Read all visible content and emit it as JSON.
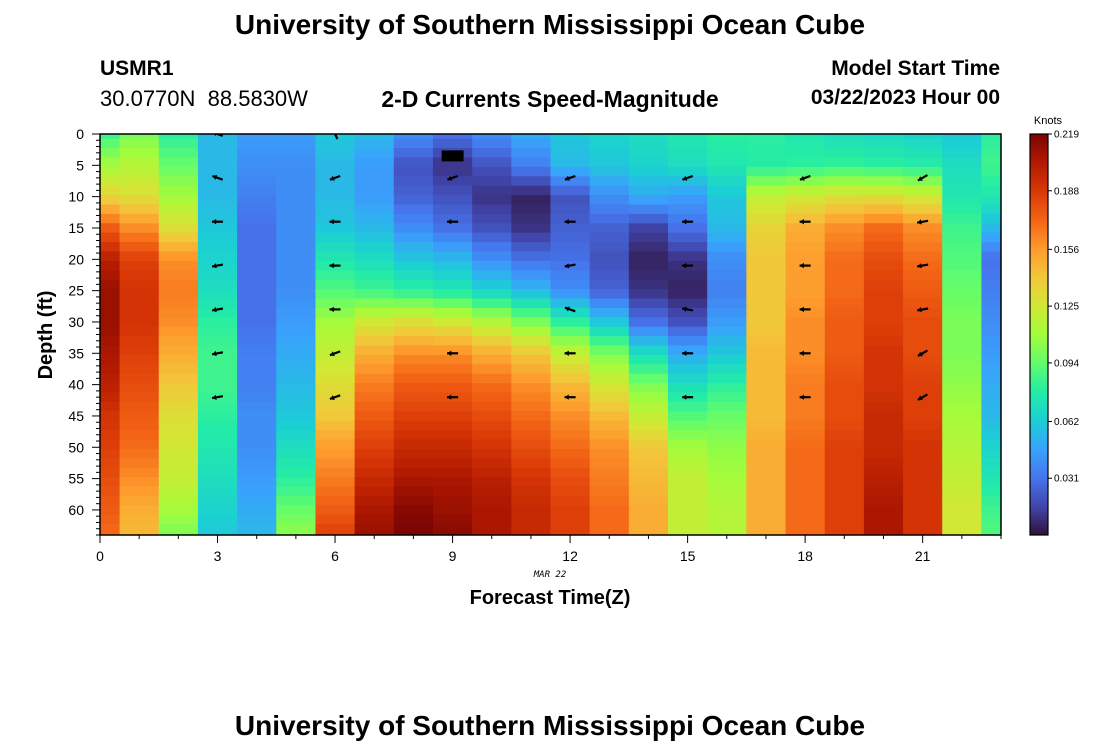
{
  "page": {
    "title": "University of Southern Mississippi Ocean Cube",
    "footer_title": "University of Southern Mississippi Ocean Cube",
    "station_id": "USMR1",
    "station_coords": "30.0770N  88.5830W",
    "start_time_label": "Model Start Time",
    "start_time_value": "03/22/2023 Hour 00"
  },
  "chart_data": {
    "type": "heatmap",
    "title": "2-D Currents Speed-Magnitude",
    "xlabel": "Forecast Time(Z)",
    "ylabel": "Depth (ft)",
    "date_label": "MAR 22",
    "colorbar_title": "Knots",
    "xlim": [
      0,
      23
    ],
    "ylim": [
      0,
      64
    ],
    "x_ticks": [
      0,
      3,
      6,
      9,
      12,
      15,
      18,
      21
    ],
    "y_ticks": [
      0,
      5,
      10,
      15,
      20,
      25,
      30,
      35,
      40,
      45,
      50,
      55,
      60
    ],
    "colorbar_ticks": [
      "0.219",
      "0.188",
      "0.156",
      "0.125",
      "0.094",
      "0.062",
      "0.031"
    ],
    "colorbar_range": [
      0,
      0.219
    ],
    "colors": [
      "#30123b",
      "#4145ab",
      "#4675ed",
      "#39a2fc",
      "#1bcfd4",
      "#24eca6",
      "#61fc6c",
      "#a4fc3b",
      "#d1e834",
      "#f3c63a",
      "#fe9b2d",
      "#f36315",
      "#d93806",
      "#b11901",
      "#7a0402"
    ],
    "hours": [
      0,
      1,
      2,
      3,
      4,
      5,
      6,
      7,
      8,
      9,
      10,
      11,
      12,
      13,
      14,
      15,
      16,
      17,
      18,
      19,
      20,
      21,
      22,
      23
    ],
    "depths": [
      0,
      5,
      10,
      15,
      20,
      25,
      30,
      35,
      40,
      45,
      50,
      55,
      60,
      64
    ],
    "speed_knots": [
      [
        0.085,
        0.1,
        0.08,
        0.055,
        0.045,
        0.045,
        0.06,
        0.055,
        0.04,
        0.03,
        0.04,
        0.05,
        0.06,
        0.065,
        0.07,
        0.075,
        0.08,
        0.08,
        0.075,
        0.07,
        0.068,
        0.065,
        0.06,
        0.08
      ],
      [
        0.11,
        0.115,
        0.095,
        0.055,
        0.04,
        0.04,
        0.055,
        0.045,
        0.02,
        0.01,
        0.02,
        0.035,
        0.055,
        0.06,
        0.065,
        0.07,
        0.075,
        0.078,
        0.08,
        0.082,
        0.08,
        0.078,
        0.07,
        0.085
      ],
      [
        0.135,
        0.13,
        0.11,
        0.055,
        0.035,
        0.04,
        0.055,
        0.045,
        0.025,
        0.02,
        0.01,
        0.005,
        0.02,
        0.04,
        0.05,
        0.045,
        0.06,
        0.12,
        0.125,
        0.13,
        0.13,
        0.125,
        0.075,
        0.075
      ],
      [
        0.175,
        0.16,
        0.13,
        0.06,
        0.03,
        0.04,
        0.06,
        0.055,
        0.04,
        0.03,
        0.02,
        0.01,
        0.025,
        0.025,
        0.015,
        0.03,
        0.055,
        0.135,
        0.15,
        0.16,
        0.17,
        0.16,
        0.085,
        0.055
      ],
      [
        0.2,
        0.185,
        0.16,
        0.065,
        0.03,
        0.04,
        0.075,
        0.07,
        0.06,
        0.055,
        0.04,
        0.03,
        0.03,
        0.02,
        0.005,
        0.01,
        0.04,
        0.14,
        0.155,
        0.17,
        0.18,
        0.17,
        0.09,
        0.03
      ],
      [
        0.21,
        0.19,
        0.165,
        0.07,
        0.03,
        0.04,
        0.09,
        0.085,
        0.08,
        0.075,
        0.065,
        0.055,
        0.04,
        0.025,
        0.01,
        0.005,
        0.035,
        0.14,
        0.155,
        0.17,
        0.185,
        0.175,
        0.095,
        0.035
      ],
      [
        0.21,
        0.19,
        0.16,
        0.08,
        0.03,
        0.045,
        0.11,
        0.125,
        0.13,
        0.125,
        0.115,
        0.1,
        0.08,
        0.06,
        0.03,
        0.02,
        0.045,
        0.14,
        0.16,
        0.175,
        0.185,
        0.18,
        0.1,
        0.04
      ],
      [
        0.205,
        0.185,
        0.15,
        0.085,
        0.035,
        0.05,
        0.12,
        0.15,
        0.16,
        0.16,
        0.15,
        0.14,
        0.12,
        0.1,
        0.07,
        0.05,
        0.06,
        0.145,
        0.16,
        0.175,
        0.19,
        0.18,
        0.1,
        0.045
      ],
      [
        0.2,
        0.18,
        0.14,
        0.085,
        0.035,
        0.055,
        0.13,
        0.165,
        0.175,
        0.175,
        0.17,
        0.16,
        0.145,
        0.125,
        0.1,
        0.07,
        0.08,
        0.145,
        0.165,
        0.18,
        0.19,
        0.185,
        0.105,
        0.05
      ],
      [
        0.19,
        0.175,
        0.13,
        0.08,
        0.04,
        0.06,
        0.14,
        0.175,
        0.185,
        0.185,
        0.18,
        0.17,
        0.16,
        0.145,
        0.12,
        0.09,
        0.095,
        0.145,
        0.165,
        0.18,
        0.195,
        0.185,
        0.11,
        0.055
      ],
      [
        0.185,
        0.17,
        0.125,
        0.075,
        0.04,
        0.07,
        0.155,
        0.185,
        0.195,
        0.195,
        0.19,
        0.18,
        0.17,
        0.16,
        0.14,
        0.11,
        0.105,
        0.15,
        0.17,
        0.185,
        0.195,
        0.19,
        0.115,
        0.065
      ],
      [
        0.18,
        0.16,
        0.12,
        0.07,
        0.045,
        0.08,
        0.165,
        0.195,
        0.205,
        0.205,
        0.2,
        0.19,
        0.18,
        0.165,
        0.145,
        0.12,
        0.11,
        0.15,
        0.17,
        0.185,
        0.2,
        0.19,
        0.12,
        0.075
      ],
      [
        0.175,
        0.15,
        0.11,
        0.065,
        0.05,
        0.095,
        0.175,
        0.205,
        0.215,
        0.21,
        0.205,
        0.195,
        0.185,
        0.17,
        0.15,
        0.12,
        0.115,
        0.15,
        0.17,
        0.185,
        0.205,
        0.19,
        0.125,
        0.085
      ],
      [
        0.17,
        0.145,
        0.1,
        0.06,
        0.055,
        0.105,
        0.185,
        0.21,
        0.219,
        0.215,
        0.205,
        0.195,
        0.185,
        0.17,
        0.15,
        0.12,
        0.115,
        0.15,
        0.17,
        0.185,
        0.205,
        0.19,
        0.125,
        0.09
      ]
    ],
    "vector_hours": [
      3,
      6,
      9,
      12,
      15,
      18,
      21
    ],
    "vector_depths": [
      0,
      7,
      14,
      21,
      28,
      35,
      42
    ],
    "vector_angles_deg": [
      [
        200,
        200,
        180,
        170,
        170,
        170,
        170
      ],
      [
        245,
        160,
        180,
        180,
        180,
        160,
        160
      ],
      [
        null,
        160,
        180,
        null,
        null,
        180,
        180
      ],
      [
        null,
        160,
        180,
        170,
        200,
        180,
        180
      ],
      [
        null,
        160,
        180,
        180,
        190,
        180,
        180
      ],
      [
        null,
        160,
        180,
        180,
        180,
        180,
        180
      ],
      [
        null,
        150,
        170,
        170,
        170,
        150,
        150
      ]
    ],
    "vector_angle_rows_note": "rows indexed by vector_hours, columns by vector_depths; degrees screen-clockwise from east",
    "marker": {
      "hour": 9,
      "depth": 3.5
    }
  }
}
